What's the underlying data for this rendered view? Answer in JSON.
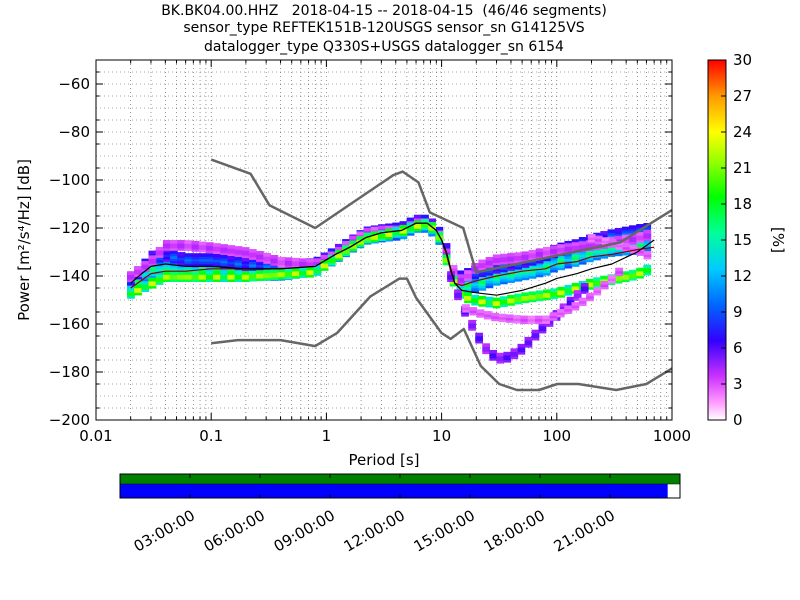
{
  "header": {
    "line1": "BK.BK04.00.HHZ   2018-04-15 -- 2018-04-15  (46/46 segments)",
    "line2": "sensor_type REFTEK151B-120USGS sensor_sn G14125VS",
    "line3": "datalogger_type Q330S+USGS datalogger_sn 6154"
  },
  "chart_data": {
    "type": "heatmap",
    "xlabel": "Period [s]",
    "ylabel": "Power [m²/s⁴/Hz] [dB]",
    "x_scale": "log",
    "xlim": [
      0.01,
      1000
    ],
    "ylim": [
      -200,
      -50
    ],
    "x_ticks": [
      "0.01",
      "0.1",
      "1",
      "10",
      "100",
      "1000"
    ],
    "x_tick_values": [
      0.01,
      0.1,
      1,
      10,
      100,
      1000
    ],
    "y_ticks": [
      "−60",
      "−80",
      "−100",
      "−120",
      "−140",
      "−160",
      "−180",
      "−200"
    ],
    "y_tick_values": [
      -60,
      -80,
      -100,
      -120,
      -140,
      -160,
      -180,
      -200
    ],
    "grid": true,
    "colorbar": {
      "label": "[%]",
      "range": [
        0,
        30
      ],
      "ticks": [
        "0",
        "3",
        "6",
        "9",
        "12",
        "15",
        "18",
        "21",
        "24",
        "27",
        "30"
      ],
      "tick_values": [
        0,
        3,
        6,
        9,
        12,
        15,
        18,
        21,
        24,
        27,
        30
      ],
      "colormap": "pqlx"
    },
    "noise_models": {
      "color": "#666666",
      "high": {
        "period": [
          0.1,
          0.22,
          0.32,
          0.8,
          3.8,
          4.6,
          6.3,
          7.9,
          15.4,
          20,
          354.8,
          1000
        ],
        "db": [
          -91.5,
          -97.4,
          -110.5,
          -120,
          -98,
          -96.5,
          -101,
          -113.5,
          -120,
          -138.5,
          -126,
          -112.5
        ]
      },
      "low": {
        "period": [
          0.1,
          0.17,
          0.4,
          0.8,
          1.24,
          2.4,
          4.3,
          5,
          6,
          10,
          12,
          15.6,
          21.9,
          31.6,
          45,
          70,
          101,
          154,
          328,
          600,
          1000
        ],
        "db": [
          -168,
          -166.7,
          -166.7,
          -169.2,
          -163.7,
          -148.6,
          -141.1,
          -141.1,
          -149,
          -163.8,
          -166.2,
          -162.1,
          -177.5,
          -185,
          -187.5,
          -187.5,
          -185,
          -185,
          -187.5,
          -185,
          -178.5
        ]
      }
    },
    "mean": {
      "color": "#000000",
      "period": [
        0.02,
        0.025,
        0.03,
        0.04,
        0.06,
        0.1,
        0.2,
        0.4,
        0.8,
        1.2,
        1.6,
        2.2,
        3,
        4.5,
        6,
        7.5,
        9,
        10,
        11,
        12,
        13,
        15,
        20,
        30,
        50,
        80,
        100,
        150,
        200,
        300,
        500,
        700
      ],
      "db": [
        -143,
        -139,
        -136,
        -135,
        -136,
        -136,
        -137,
        -137,
        -136,
        -131,
        -128,
        -124,
        -122,
        -121,
        -118,
        -118,
        -121,
        -125,
        -130,
        -137,
        -143,
        -146,
        -147,
        -148,
        -146,
        -143,
        -141,
        -139,
        -137,
        -135,
        -130,
        -125
      ]
    },
    "mode": {
      "color": "#8b0000",
      "period": [
        0.02,
        0.03,
        0.04,
        0.06,
        0.1,
        0.2,
        0.4,
        0.8,
        1.2,
        1.6,
        2.2,
        3,
        4.5,
        6,
        7.5,
        9,
        10,
        11,
        12,
        13,
        15,
        20,
        30,
        50,
        80,
        100,
        150,
        200,
        300,
        500,
        700
      ],
      "db": [
        -145,
        -139,
        -138,
        -138,
        -137,
        -137,
        -137,
        -136,
        -131,
        -128,
        -124,
        -122,
        -121,
        -118,
        -118,
        -121,
        -125,
        -131,
        -138,
        -143,
        -144,
        -142,
        -140,
        -138,
        -137,
        -135,
        -134,
        -132,
        -131,
        -129,
        -128
      ]
    },
    "density_bands": [
      {
        "period": [
          0.02,
          0.025,
          0.03,
          0.04,
          0.06,
          0.1,
          0.2,
          0.4,
          0.8,
          1.2,
          1.6,
          2.2,
          3,
          4.5,
          6,
          7.5,
          9,
          10,
          11,
          12,
          13,
          15,
          20,
          30,
          50,
          80,
          100,
          150,
          200,
          300,
          500,
          700
        ],
        "db": [
          -144,
          -140,
          -137,
          -137,
          -138,
          -137,
          -138,
          -138,
          -136,
          -131,
          -127,
          -123,
          -122,
          -121,
          -118,
          -118,
          -121,
          -125,
          -130,
          -137,
          -142,
          -144,
          -143,
          -140,
          -138,
          -136,
          -134,
          -132,
          -130,
          -128,
          -127,
          -126
        ],
        "percent": 15,
        "halfwidth_db": 3
      },
      {
        "period": [
          0.02,
          0.025,
          0.03,
          0.04,
          0.06,
          0.1,
          0.2,
          0.4,
          0.8,
          1.2,
          1.6,
          2.2,
          3,
          4.5,
          6,
          7.5,
          9,
          10,
          11,
          12,
          13,
          15,
          20,
          30,
          50,
          80,
          100,
          150,
          200,
          300,
          500,
          700
        ],
        "db": [
          -141,
          -137,
          -132,
          -131,
          -133,
          -133,
          -135,
          -136,
          -135,
          -130,
          -126,
          -122,
          -121,
          -120,
          -117,
          -117,
          -120,
          -124,
          -129,
          -136,
          -141,
          -140,
          -138,
          -136,
          -134,
          -131,
          -129,
          -127,
          -125,
          -123,
          -121,
          -120
        ],
        "percent": 9,
        "halfwidth_db": 2
      },
      {
        "period": [
          0.02,
          0.03,
          0.04,
          0.06,
          0.1,
          0.2,
          0.4,
          0.8,
          1.2,
          1.6,
          2.2,
          3,
          4.5,
          6,
          7.5,
          9,
          10,
          12,
          15,
          20,
          30,
          50,
          100,
          200,
          500,
          700
        ],
        "db": [
          -140,
          -134,
          -127,
          -127,
          -128,
          -130,
          -134,
          -135,
          -131,
          -126,
          -122,
          -121,
          -121,
          -118,
          -118,
          -121,
          -125,
          -136,
          -142,
          -136,
          -133,
          -132,
          -129,
          -127,
          -124,
          -122
        ],
        "percent": 4,
        "halfwidth_db": 1.5
      },
      {
        "period": [
          0.02,
          0.03,
          0.04,
          0.06,
          0.1,
          0.2,
          0.4,
          0.8,
          1.2,
          1.6,
          2.2,
          3,
          4.5,
          6,
          7.5,
          9,
          10,
          12,
          15,
          20,
          30,
          50,
          100,
          200,
          500,
          700
        ],
        "db": [
          -147,
          -143,
          -140,
          -140,
          -140,
          -140,
          -139,
          -138,
          -132,
          -128,
          -124,
          -123,
          -121,
          -119,
          -118,
          -121,
          -126,
          -140,
          -148,
          -150,
          -151,
          -149,
          -147,
          -143,
          -139,
          -136
        ],
        "percent": 22,
        "halfwidth_db": 1.5
      },
      {
        "period": [
          12,
          15,
          20,
          25,
          30,
          35,
          40,
          50,
          60,
          80,
          100,
          150,
          200
        ],
        "db": [
          -140,
          -152,
          -164,
          -171,
          -174,
          -174,
          -173,
          -170,
          -166,
          -160,
          -156,
          -148,
          -142
        ],
        "percent": 6,
        "halfwidth_db": 1.5
      },
      {
        "period": [
          14,
          20,
          30,
          50,
          80,
          100,
          150,
          200,
          300,
          400
        ],
        "db": [
          -152,
          -155,
          -157,
          -158,
          -158,
          -156,
          -152,
          -148,
          -141,
          -135
        ],
        "percent": 3,
        "halfwidth_db": 1
      },
      {
        "period": [
          200,
          300,
          400,
          500,
          600,
          700
        ],
        "db": [
          -124,
          -126,
          -128,
          -129,
          -131,
          -132
        ],
        "percent": 3,
        "halfwidth_db": 1
      }
    ]
  },
  "timeline": {
    "tick_labels": [
      "03:00:00",
      "06:00:00",
      "09:00:00",
      "12:00:00",
      "15:00:00",
      "18:00:00",
      "21:00:00"
    ],
    "tick_hours": [
      3,
      6,
      9,
      12,
      15,
      18,
      21
    ],
    "hours_total": 24,
    "data_color": "#008000",
    "psd_color": "#0000ff",
    "data_coverage": 1.0,
    "psd_coverage": 0.978
  }
}
